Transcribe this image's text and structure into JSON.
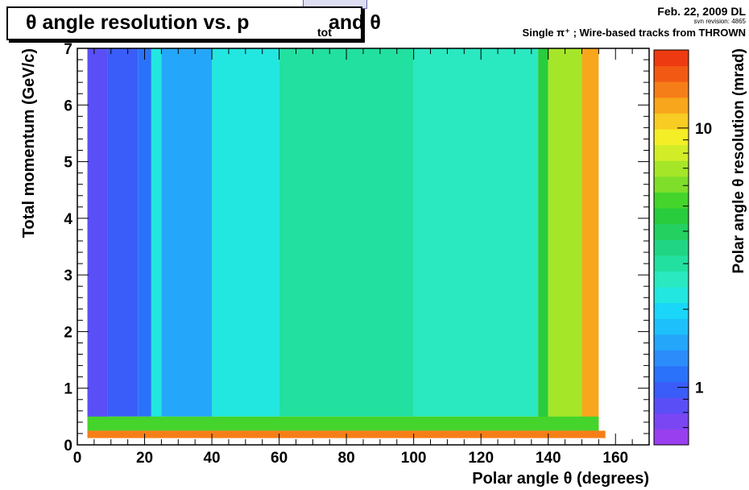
{
  "header": {
    "date": "Feb. 22, 2009 DL",
    "svn": "svn revision: 4865",
    "subtitle": "Single π⁺ ; Wire-based tracks from THROWN"
  },
  "chart_data": {
    "type": "heatmap",
    "title": "θ angle resolution vs. p and θ",
    "title_subscript": "tot",
    "title_prefix": "θ angle resolution vs. p",
    "title_suffix": "and θ",
    "xlabel": "Polar angle θ (degrees)",
    "ylabel": "Total momentum (GeV/c)",
    "zlabel": "Polar angle θ resolution (mrad)",
    "xlim": [
      0,
      170
    ],
    "ylim": [
      0,
      7
    ],
    "zlim": [
      0.6,
      20
    ],
    "z_scale": "log",
    "x_ticks": [
      0,
      20,
      40,
      60,
      80,
      100,
      120,
      140,
      160
    ],
    "y_ticks": [
      0,
      1,
      2,
      3,
      4,
      5,
      6,
      7
    ],
    "z_ticks": [
      1,
      10
    ],
    "colorbar_colors": [
      "#9a3ff0",
      "#7a46f3",
      "#5a4ff6",
      "#3a5cf8",
      "#2a72f9",
      "#2b8cfa",
      "#24a6fb",
      "#1ec0fb",
      "#1ad6f8",
      "#22e6e0",
      "#2ae8c0",
      "#22e0a0",
      "#20d684",
      "#24d060",
      "#28cc3c",
      "#44d42c",
      "#7ede2a",
      "#a6e628",
      "#d2ec28",
      "#f4ee26",
      "#f8cc22",
      "#f8a61c",
      "#f67e18",
      "#f25a14",
      "#ee3a10"
    ],
    "regions": [
      {
        "x": [
          3,
          9
        ],
        "y": [
          0.3,
          7
        ],
        "z": 0.8
      },
      {
        "x": [
          9,
          18
        ],
        "y": [
          0.5,
          7
        ],
        "z": 1.0
      },
      {
        "x": [
          18,
          22
        ],
        "y": [
          0.5,
          7
        ],
        "z": 1.2
      },
      {
        "x": [
          22,
          25
        ],
        "y": [
          0.4,
          7
        ],
        "z": 2.2
      },
      {
        "x": [
          25,
          40
        ],
        "y": [
          0.5,
          7
        ],
        "z": 1.4
      },
      {
        "x": [
          40,
          60
        ],
        "y": [
          0.5,
          7
        ],
        "z": 2.2
      },
      {
        "x": [
          60,
          100
        ],
        "y": [
          0.5,
          7
        ],
        "z": 3.0
      },
      {
        "x": [
          100,
          137
        ],
        "y": [
          0.5,
          7
        ],
        "z": 2.6
      },
      {
        "x": [
          137,
          140
        ],
        "y": [
          0.4,
          7
        ],
        "z": 4.5
      },
      {
        "x": [
          140,
          150
        ],
        "y": [
          0.4,
          7
        ],
        "z": 7.0
      },
      {
        "x": [
          150,
          155
        ],
        "y": [
          0.2,
          7
        ],
        "z": 12
      },
      {
        "x": [
          3,
          155
        ],
        "y": [
          0.25,
          0.5
        ],
        "z": 5.0
      },
      {
        "x": [
          3,
          157
        ],
        "y": [
          0.12,
          0.25
        ],
        "z": 15
      }
    ]
  }
}
